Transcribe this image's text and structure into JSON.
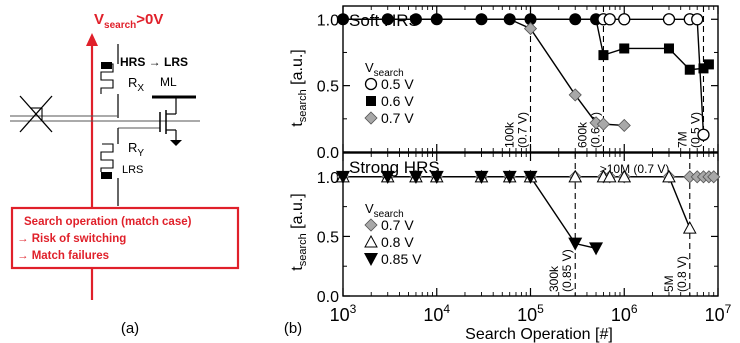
{
  "panel_a": {
    "caption": "(a)",
    "vsearch": {
      "main": "V",
      "sub": "search",
      "rest": ">0V"
    },
    "hrs_lrs": "HRS → LRS",
    "rx": {
      "main": "R",
      "sub": "X"
    },
    "ml": "ML",
    "ry": {
      "main": "R",
      "sub": "Y"
    },
    "lrs": "LRS",
    "box_lines": [
      "Search operation (match case)",
      "→ Risk of switching",
      "→ Match failures"
    ],
    "colors": {
      "accent": "#e0202a"
    }
  },
  "panel_b": {
    "caption": "(b)",
    "xlabel": "Search Operation [#]",
    "ylabel": {
      "main": "t",
      "sub": "search",
      "rest": " [a.u.]"
    },
    "legend_title": {
      "main": "V",
      "sub": "search"
    }
  },
  "chart_data": [
    {
      "type": "line",
      "title": "Soft HRS",
      "xscale": "log",
      "xlim": [
        1000,
        10000000
      ],
      "ylim": [
        0,
        1.1
      ],
      "yticks": [
        "0.0",
        "0.5",
        "1.0"
      ],
      "xticks": [
        {
          "base": "10",
          "exp": "3",
          "value": 1000
        },
        {
          "base": "10",
          "exp": "4",
          "value": 10000
        },
        {
          "base": "10",
          "exp": "5",
          "value": 100000
        },
        {
          "base": "10",
          "exp": "6",
          "value": 1000000
        },
        {
          "base": "10",
          "exp": "7",
          "value": 10000000
        }
      ],
      "legend_position": "left",
      "series": [
        {
          "name": "0.5 V",
          "marker": "circle-open",
          "x": [
            1000,
            3000,
            6000,
            10000,
            30000,
            60000,
            100000,
            300000,
            600000,
            700000,
            1000000,
            3000000,
            5000000,
            6000000,
            7000000
          ],
          "y": [
            1.0,
            1.0,
            1.0,
            1.0,
            1.0,
            1.0,
            1.0,
            1.0,
            1.0,
            1.0,
            1.0,
            1.0,
            1.0,
            1.0,
            0.13
          ]
        },
        {
          "name": "0.6 V",
          "marker": "square-filled",
          "x": [
            1000,
            3000,
            6000,
            10000,
            30000,
            60000,
            100000,
            300000,
            500000,
            600000,
            1000000,
            3000000,
            5000000,
            7000000,
            8000000
          ],
          "y": [
            1.0,
            1.0,
            1.0,
            1.0,
            1.0,
            1.0,
            1.0,
            1.0,
            1.0,
            0.73,
            0.78,
            0.78,
            0.62,
            0.63,
            0.66
          ]
        },
        {
          "name": "0.7 V",
          "marker": "diamond-gray",
          "x": [
            1000,
            3000,
            6000,
            10000,
            30000,
            60000,
            100000,
            300000,
            500000,
            600000,
            1000000
          ],
          "y": [
            1.0,
            1.0,
            1.0,
            1.0,
            1.0,
            1.0,
            0.93,
            0.43,
            0.22,
            0.21,
            0.2
          ]
        }
      ],
      "annotations": [
        {
          "text": [
            "100k",
            "(0.7 V)"
          ],
          "x": 100000
        },
        {
          "text": [
            "600k",
            "(0.6 V)"
          ],
          "x": 600000
        },
        {
          "text": [
            "7M",
            "(0.5 V)"
          ],
          "x": 7000000
        }
      ]
    },
    {
      "type": "line",
      "title": "Strong HRS",
      "xscale": "log",
      "xlim": [
        1000,
        10000000
      ],
      "ylim": [
        0,
        1.2
      ],
      "yticks": [
        "0.0",
        "0.5",
        "1.0"
      ],
      "legend_position": "left",
      "series": [
        {
          "name": "0.7 V",
          "marker": "diamond-gray",
          "x": [
            1000,
            3000,
            6000,
            10000,
            30000,
            60000,
            100000,
            300000,
            600000,
            700000,
            1000000,
            3000000,
            5000000,
            6000000,
            7000000,
            8000000,
            9000000
          ],
          "y": [
            1.0,
            1.0,
            1.0,
            1.0,
            1.0,
            1.0,
            1.0,
            1.0,
            1.0,
            1.0,
            1.0,
            1.0,
            1.0,
            1.0,
            1.0,
            1.0,
            1.0
          ]
        },
        {
          "name": "0.8 V",
          "marker": "triangle-up-open",
          "x": [
            1000,
            3000,
            6000,
            10000,
            30000,
            60000,
            100000,
            300000,
            600000,
            700000,
            1000000,
            3000000,
            5000000
          ],
          "y": [
            1.0,
            1.0,
            1.0,
            1.0,
            1.0,
            1.0,
            1.0,
            1.0,
            1.0,
            1.0,
            1.0,
            1.0,
            0.57
          ]
        },
        {
          "name": "0.85 V",
          "marker": "triangle-down-filled",
          "x": [
            1000,
            3000,
            6000,
            10000,
            30000,
            60000,
            100000,
            300000,
            500000
          ],
          "y": [
            1.0,
            1.0,
            1.0,
            1.0,
            1.0,
            1.0,
            1.0,
            0.44,
            0.4
          ]
        }
      ],
      "annotations": [
        {
          "text": [
            "300k",
            "(0.85 V)"
          ],
          "x": 300000
        },
        {
          "text": [
            "5M",
            "(0.8 V)"
          ],
          "x": 5000000
        },
        {
          "text": [
            ">10M (0.7 V)"
          ],
          "x": 700000
        }
      ]
    }
  ]
}
